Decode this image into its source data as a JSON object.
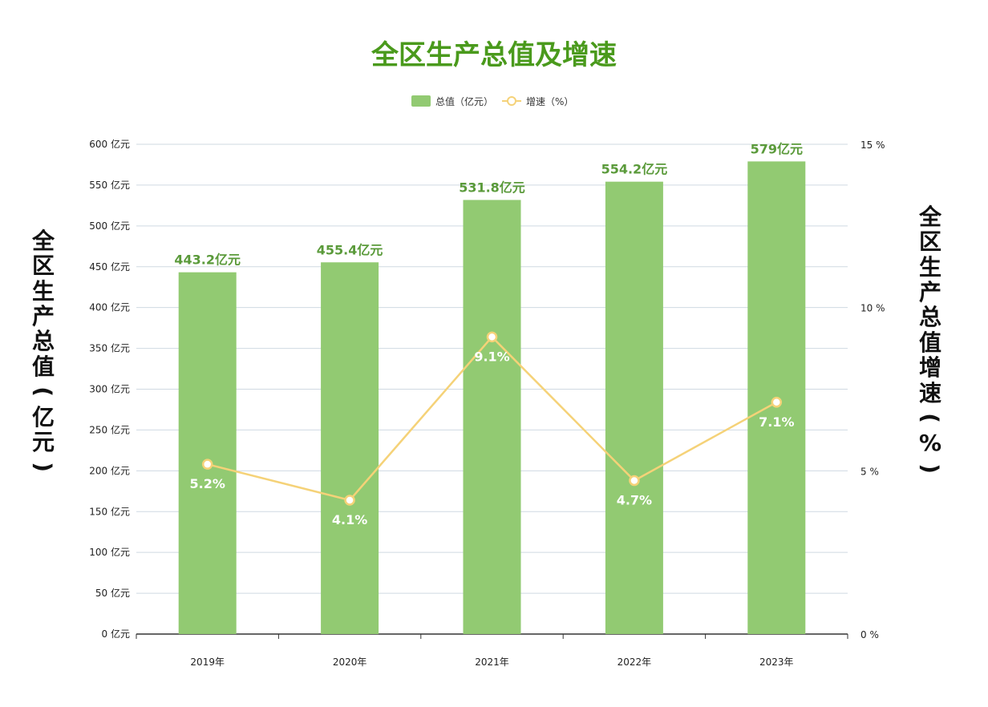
{
  "chart_data": {
    "type": "bar+line",
    "title": "全区生产总值及增速",
    "categories": [
      "2019年",
      "2020年",
      "2021年",
      "2022年",
      "2023年"
    ],
    "series": [
      {
        "name": "总值（亿元）",
        "type": "bar",
        "axis": "left",
        "values": [
          443.2,
          455.4,
          531.8,
          554.2,
          579
        ],
        "labels": [
          "443.2亿元",
          "455.4亿元",
          "531.8亿元",
          "554.2亿元",
          "579亿元"
        ],
        "color": "#92ca72"
      },
      {
        "name": "增速（%）",
        "type": "line",
        "axis": "right",
        "values": [
          5.2,
          4.1,
          9.1,
          4.7,
          7.1
        ],
        "labels": [
          "5.2%",
          "4.1%",
          "9.1%",
          "4.7%",
          "7.1%"
        ],
        "color": "#f5d278"
      }
    ],
    "y_left": {
      "label": "全区生产总值（亿元）",
      "range": [
        0,
        600
      ],
      "ticks": [
        "0 亿元",
        "50 亿元",
        "100 亿元",
        "150 亿元",
        "200 亿元",
        "250 亿元",
        "300 亿元",
        "350 亿元",
        "400 亿元",
        "450 亿元",
        "500 亿元",
        "550 亿元",
        "600 亿元"
      ]
    },
    "y_right": {
      "label": "全区生产总值增速（%）",
      "range": [
        0,
        15
      ],
      "ticks": [
        "0 %",
        "5 %",
        "10 %",
        "15 %"
      ]
    },
    "grid": true,
    "legend_position": "top-center",
    "colors": {
      "title": "#4a9a1c",
      "bar_label": "#5a9a3a",
      "grid": "#cfd9e2",
      "axis": "#333333"
    }
  }
}
